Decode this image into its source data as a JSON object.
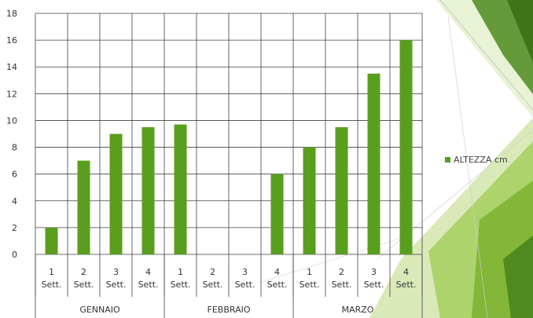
{
  "chart_data": {
    "type": "bar",
    "title": "",
    "xlabel": "",
    "ylabel": "",
    "ylim": [
      0,
      18
    ],
    "yticks": [
      0,
      2,
      4,
      6,
      8,
      10,
      12,
      14,
      16,
      18
    ],
    "grid": true,
    "legend_position": "right",
    "categories": [
      {
        "line1": "1",
        "line2": "Sett."
      },
      {
        "line1": "2",
        "line2": "Sett."
      },
      {
        "line1": "3",
        "line2": "Sett."
      },
      {
        "line1": "4",
        "line2": "Sett."
      },
      {
        "line1": "1",
        "line2": "Sett."
      },
      {
        "line1": "2",
        "line2": "Sett."
      },
      {
        "line1": "3",
        "line2": "Sett."
      },
      {
        "line1": "4",
        "line2": "Sett."
      },
      {
        "line1": "1",
        "line2": "Sett."
      },
      {
        "line1": "2",
        "line2": "Sett."
      },
      {
        "line1": "3",
        "line2": "Sett."
      },
      {
        "line1": "4",
        "line2": "Sett."
      }
    ],
    "groups": [
      {
        "label": "GENNAIO",
        "count": 4
      },
      {
        "label": "FEBBRAIO",
        "count": 4
      },
      {
        "label": "MARZO",
        "count": 4
      }
    ],
    "series": [
      {
        "name": "ALTEZZA cm",
        "color": "#5a9e1e",
        "values": [
          2,
          7,
          9,
          9.5,
          9.7,
          null,
          null,
          6,
          8,
          9.5,
          13.5,
          16
        ]
      }
    ]
  },
  "colors": {
    "bar": "#5a9e1e",
    "gridline": "#404040",
    "tick_text": "#333333"
  }
}
